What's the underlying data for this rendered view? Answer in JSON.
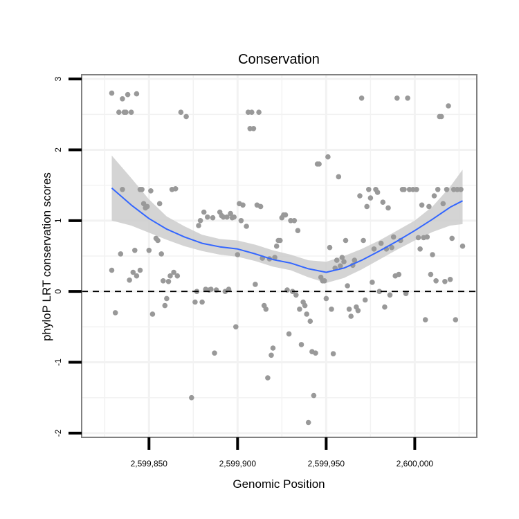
{
  "chart_data": {
    "type": "scatter",
    "title": "Conservation",
    "xlabel": "Genomic Position",
    "ylabel": "phyloP LRT conservation scores",
    "xlim": [
      2599812,
      2600035
    ],
    "ylim": [
      -2.06,
      3.06
    ],
    "xticks": [
      2599850,
      2599900,
      2599950,
      2600000
    ],
    "xtick_labels": [
      "2,599,850",
      "2,599,900",
      "2,599,950",
      "2,600,000"
    ],
    "yticks": [
      -2,
      -1,
      0,
      1,
      2,
      3
    ],
    "ytick_labels": [
      "-2",
      "-1",
      "0",
      "1",
      "2",
      "3"
    ],
    "grid": true,
    "reference_line": {
      "y": 0,
      "style": "dashed"
    },
    "colors": {
      "points": "#999999",
      "smooth": "#3366FF",
      "ribbon": "#cccccc",
      "panel_border": "#808080"
    },
    "smooth": {
      "x": [
        2599829,
        2599840,
        2599850,
        2599860,
        2599870,
        2599880,
        2599890,
        2599900,
        2599910,
        2599920,
        2599930,
        2599940,
        2599950,
        2599960,
        2599970,
        2599980,
        2599990,
        2600000,
        2600010,
        2600020,
        2600027
      ],
      "y": [
        1.46,
        1.22,
        1.03,
        0.88,
        0.77,
        0.68,
        0.63,
        0.6,
        0.53,
        0.45,
        0.4,
        0.32,
        0.27,
        0.33,
        0.44,
        0.57,
        0.71,
        0.86,
        1.02,
        1.19,
        1.28
      ],
      "lower": [
        1.0,
        0.93,
        0.83,
        0.73,
        0.64,
        0.57,
        0.52,
        0.49,
        0.43,
        0.35,
        0.3,
        0.2,
        0.12,
        0.19,
        0.31,
        0.45,
        0.59,
        0.72,
        0.84,
        0.93,
        0.95
      ],
      "upper": [
        1.92,
        1.6,
        1.3,
        1.06,
        0.92,
        0.8,
        0.74,
        0.72,
        0.66,
        0.58,
        0.52,
        0.44,
        0.42,
        0.5,
        0.6,
        0.72,
        0.86,
        1.0,
        1.2,
        1.48,
        1.72
      ]
    },
    "points": [
      [
        2599829,
        2.8
      ],
      [
        2599833,
        2.53
      ],
      [
        2599835,
        2.72
      ],
      [
        2599836,
        2.53
      ],
      [
        2599837,
        2.53
      ],
      [
        2599838,
        2.78
      ],
      [
        2599840,
        2.53
      ],
      [
        2599843,
        2.79
      ],
      [
        2599829,
        0.3
      ],
      [
        2599831,
        -0.3
      ],
      [
        2599834,
        0.53
      ],
      [
        2599835,
        1.44
      ],
      [
        2599839,
        0.16
      ],
      [
        2599841,
        0.27
      ],
      [
        2599842,
        0.58
      ],
      [
        2599843,
        0.22
      ],
      [
        2599845,
        0.3
      ],
      [
        2599845,
        1.44
      ],
      [
        2599846,
        1.44
      ],
      [
        2599847,
        1.24
      ],
      [
        2599848,
        1.18
      ],
      [
        2599849,
        1.2
      ],
      [
        2599850,
        0.58
      ],
      [
        2599851,
        1.42
      ],
      [
        2599852,
        -0.32
      ],
      [
        2599854,
        0.75
      ],
      [
        2599855,
        0.72
      ],
      [
        2599856,
        1.24
      ],
      [
        2599857,
        0.53
      ],
      [
        2599858,
        0.15
      ],
      [
        2599859,
        -0.2
      ],
      [
        2599860,
        -0.1
      ],
      [
        2599861,
        0.14
      ],
      [
        2599862,
        0.22
      ],
      [
        2599863,
        1.44
      ],
      [
        2599864,
        0.27
      ],
      [
        2599865,
        1.45
      ],
      [
        2599866,
        0.22
      ],
      [
        2599868,
        2.53
      ],
      [
        2599871,
        2.47
      ],
      [
        2599874,
        -1.5
      ],
      [
        2599876,
        -0.15
      ],
      [
        2599877,
        0.0
      ],
      [
        2599878,
        0.93
      ],
      [
        2599879,
        1.0
      ],
      [
        2599880,
        -0.15
      ],
      [
        2599881,
        1.12
      ],
      [
        2599882,
        0.03
      ],
      [
        2599883,
        1.05
      ],
      [
        2599884,
        0.02
      ],
      [
        2599885,
        0.03
      ],
      [
        2599886,
        1.04
      ],
      [
        2599887,
        -0.87
      ],
      [
        2599888,
        0.02
      ],
      [
        2599890,
        1.12
      ],
      [
        2599891,
        1.07
      ],
      [
        2599892,
        1.05
      ],
      [
        2599893,
        0.0
      ],
      [
        2599894,
        1.05
      ],
      [
        2599895,
        0.03
      ],
      [
        2599896,
        1.1
      ],
      [
        2599897,
        1.04
      ],
      [
        2599898,
        1.05
      ],
      [
        2599899,
        -0.5
      ],
      [
        2599900,
        0.52
      ],
      [
        2599901,
        1.24
      ],
      [
        2599902,
        1.0
      ],
      [
        2599903,
        1.22
      ],
      [
        2599905,
        0.92
      ],
      [
        2599906,
        2.53
      ],
      [
        2599907,
        2.3
      ],
      [
        2599908,
        2.53
      ],
      [
        2599909,
        2.3
      ],
      [
        2599910,
        0.1
      ],
      [
        2599911,
        1.22
      ],
      [
        2599912,
        2.53
      ],
      [
        2599913,
        1.2
      ],
      [
        2599914,
        0.47
      ],
      [
        2599915,
        -0.2
      ],
      [
        2599916,
        -0.25
      ],
      [
        2599917,
        -1.22
      ],
      [
        2599918,
        0.46
      ],
      [
        2599919,
        -0.9
      ],
      [
        2599920,
        -0.8
      ],
      [
        2599921,
        0.48
      ],
      [
        2599922,
        0.64
      ],
      [
        2599923,
        0.72
      ],
      [
        2599924,
        0.72
      ],
      [
        2599925,
        1.04
      ],
      [
        2599926,
        1.08
      ],
      [
        2599927,
        1.08
      ],
      [
        2599928,
        0.02
      ],
      [
        2599929,
        -0.6
      ],
      [
        2599930,
        1.0
      ],
      [
        2599931,
        0.0
      ],
      [
        2599932,
        1.0
      ],
      [
        2599933,
        -0.05
      ],
      [
        2599934,
        0.86
      ],
      [
        2599935,
        -0.25
      ],
      [
        2599936,
        -0.75
      ],
      [
        2599937,
        -0.15
      ],
      [
        2599938,
        -0.2
      ],
      [
        2599939,
        -0.32
      ],
      [
        2599940,
        -1.85
      ],
      [
        2599941,
        -0.42
      ],
      [
        2599942,
        -0.85
      ],
      [
        2599943,
        -1.47
      ],
      [
        2599944,
        -0.87
      ],
      [
        2599945,
        1.8
      ],
      [
        2599946,
        1.8
      ],
      [
        2599947,
        0.2
      ],
      [
        2599948,
        0.15
      ],
      [
        2599949,
        0.15
      ],
      [
        2599950,
        -0.1
      ],
      [
        2599951,
        1.9
      ],
      [
        2599952,
        0.62
      ],
      [
        2599953,
        -0.25
      ],
      [
        2599954,
        -0.88
      ],
      [
        2599955,
        0.33
      ],
      [
        2599956,
        0.44
      ],
      [
        2599957,
        1.62
      ],
      [
        2599958,
        0.36
      ],
      [
        2599959,
        0.48
      ],
      [
        2599960,
        0.42
      ],
      [
        2599961,
        0.72
      ],
      [
        2599962,
        0.08
      ],
      [
        2599963,
        -0.25
      ],
      [
        2599964,
        -0.35
      ],
      [
        2599965,
        0.37
      ],
      [
        2599966,
        0.44
      ],
      [
        2599967,
        -0.22
      ],
      [
        2599968,
        -0.27
      ],
      [
        2599969,
        1.35
      ],
      [
        2599970,
        2.73
      ],
      [
        2599971,
        0.72
      ],
      [
        2599972,
        -0.12
      ],
      [
        2599973,
        1.2
      ],
      [
        2599974,
        1.44
      ],
      [
        2599975,
        1.32
      ],
      [
        2599976,
        0.13
      ],
      [
        2599977,
        0.6
      ],
      [
        2599978,
        1.44
      ],
      [
        2599979,
        1.4
      ],
      [
        2599980,
        0.0
      ],
      [
        2599981,
        0.68
      ],
      [
        2599982,
        1.26
      ],
      [
        2599983,
        -0.22
      ],
      [
        2599984,
        0.6
      ],
      [
        2599985,
        1.18
      ],
      [
        2599986,
        -0.05
      ],
      [
        2599987,
        0.62
      ],
      [
        2599988,
        0.77
      ],
      [
        2599989,
        0.22
      ],
      [
        2599990,
        2.73
      ],
      [
        2599991,
        0.24
      ],
      [
        2599992,
        0.72
      ],
      [
        2599993,
        1.44
      ],
      [
        2599994,
        1.44
      ],
      [
        2599995,
        -0.03
      ],
      [
        2599996,
        2.73
      ],
      [
        2599997,
        1.44
      ],
      [
        2599999,
        1.44
      ],
      [
        2600001,
        1.44
      ],
      [
        2600002,
        0.76
      ],
      [
        2600003,
        0.6
      ],
      [
        2600004,
        1.22
      ],
      [
        2600005,
        0.76
      ],
      [
        2600006,
        -0.4
      ],
      [
        2600007,
        0.77
      ],
      [
        2600008,
        1.2
      ],
      [
        2600009,
        0.24
      ],
      [
        2600010,
        0.52
      ],
      [
        2600011,
        1.35
      ],
      [
        2600012,
        0.15
      ],
      [
        2600013,
        1.44
      ],
      [
        2600014,
        2.47
      ],
      [
        2600015,
        2.47
      ],
      [
        2600016,
        1.24
      ],
      [
        2600017,
        0.14
      ],
      [
        2600018,
        1.44
      ],
      [
        2600019,
        2.62
      ],
      [
        2600020,
        0.17
      ],
      [
        2600021,
        0.75
      ],
      [
        2600022,
        1.44
      ],
      [
        2600023,
        -0.4
      ],
      [
        2600024,
        1.44
      ],
      [
        2600026,
        1.44
      ],
      [
        2600027,
        0.64
      ]
    ]
  }
}
